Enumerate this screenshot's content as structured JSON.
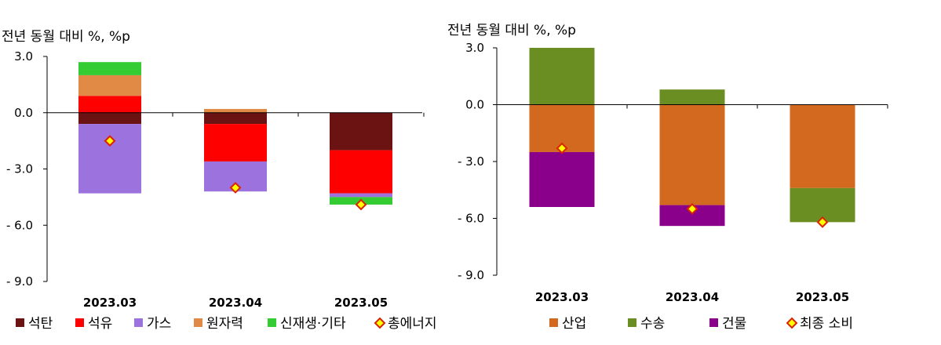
{
  "chart_data": [
    {
      "type": "bar",
      "stacked": true,
      "ylabel": "전년 동월 대비 %, %p",
      "ylim": [
        -9,
        3
      ],
      "yticks": [
        "3.0",
        "0.0",
        "- 3.0",
        "- 6.0",
        "- 9.0"
      ],
      "categories": [
        "2023.03",
        "2023.04",
        "2023.05"
      ],
      "series": [
        {
          "name": "석탄",
          "color": "#6b1212",
          "values": [
            -0.6,
            -0.6,
            -2.0
          ]
        },
        {
          "name": "석유",
          "color": "#ff0000",
          "values": [
            0.9,
            -2.0,
            -2.3
          ]
        },
        {
          "name": "가스",
          "color": "#9b72de",
          "values": [
            -3.7,
            -1.6,
            -0.2
          ]
        },
        {
          "name": "원자력",
          "color": "#e08a45",
          "values": [
            1.1,
            0.2,
            0.0
          ]
        },
        {
          "name": "신재생·기타",
          "color": "#33cc33",
          "values": [
            0.7,
            0.0,
            -0.4
          ]
        }
      ],
      "total": {
        "name": "총에너지",
        "values": [
          -1.5,
          -4.0,
          -4.9
        ],
        "fill": "#ffff00",
        "stroke": "#dd2200"
      },
      "legend": "bottom",
      "grid": false
    },
    {
      "type": "bar",
      "stacked": true,
      "ylabel": "전년 동월 대비 %, %p",
      "ylim": [
        -9,
        3
      ],
      "yticks": [
        "3.0",
        "0.0",
        "- 3.0",
        "- 6.0",
        "- 9.0"
      ],
      "categories": [
        "2023.03",
        "2023.04",
        "2023.05"
      ],
      "series": [
        {
          "name": "산업",
          "color": "#d2691e",
          "values": [
            -2.5,
            -5.3,
            -4.4
          ]
        },
        {
          "name": "수송",
          "color": "#6b8e23",
          "values": [
            3.0,
            0.8,
            -1.8
          ]
        },
        {
          "name": "건물",
          "color": "#8b008b",
          "values": [
            -2.9,
            -1.1,
            0.0
          ]
        }
      ],
      "total": {
        "name": "최종 소비",
        "values": [
          -2.3,
          -5.5,
          -6.2
        ],
        "fill": "#ffff00",
        "stroke": "#dd2200"
      },
      "legend": "bottom",
      "grid": false
    }
  ]
}
